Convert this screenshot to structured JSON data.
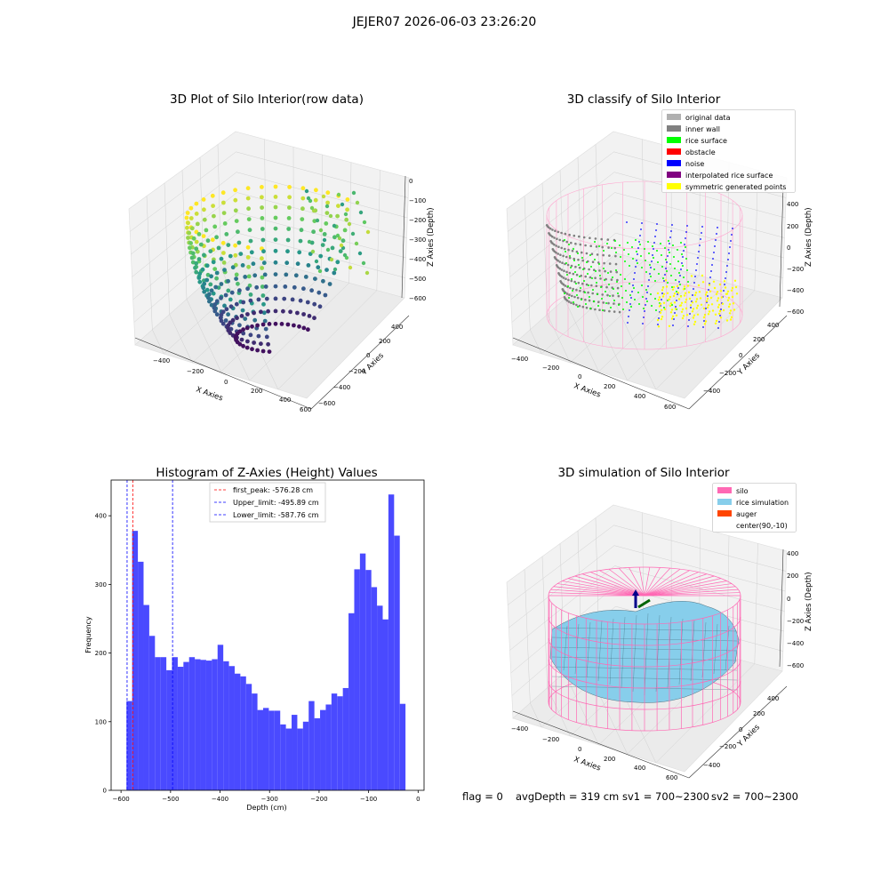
{
  "figure_title": "JEJER07 2026-06-03 23:26:20",
  "colors": {
    "hist_bar": "#4a4aff",
    "first_peak_line": "#ff0000",
    "limit_line": "#0000ff",
    "silo": "#ff69b4",
    "rice_simulation": "#87ceeb",
    "auger": "#ff4500",
    "original_data": "#b0b0b0",
    "inner_wall": "#808080",
    "rice_surface": "#00ff00",
    "obstacle": "#ff0000",
    "noise": "#0000ff",
    "interpolated_rice_surface": "#800080",
    "symmetric_generated_points": "#ffff00"
  },
  "chart_data": [
    {
      "type": "scatter",
      "projection": "3d",
      "title": "3D Plot of Silo Interior(row data)",
      "xlabel": "X Axies",
      "ylabel": "Y Axies",
      "zlabel": "Z Axies (Depth)",
      "x_ticks": [
        "−400",
        "−200",
        "0",
        "200",
        "400",
        "600"
      ],
      "y_ticks": [
        "−600",
        "−400",
        "−200",
        "0",
        "200",
        "400"
      ],
      "z_ticks": [
        "0",
        "−100",
        "−200",
        "−300",
        "−400",
        "−500",
        "−600"
      ],
      "colormap": "viridis",
      "grid": true
    },
    {
      "type": "scatter",
      "projection": "3d",
      "title": "3D classify of Silo Interior",
      "xlabel": "X Axies",
      "ylabel": "Y Axies",
      "zlabel": "Z Axies (Depth)",
      "x_ticks": [
        "−400",
        "−200",
        "0",
        "200",
        "400",
        "600"
      ],
      "y_ticks": [
        "−400",
        "−200",
        "0",
        "200",
        "400"
      ],
      "z_ticks": [
        "400",
        "200",
        "0",
        "−200",
        "−400",
        "−600"
      ],
      "legend_placement": "top-right",
      "legend": [
        {
          "label": "original data",
          "color": "#b0b0b0"
        },
        {
          "label": "inner wall",
          "color": "#808080"
        },
        {
          "label": "rice surface",
          "color": "#00ff00"
        },
        {
          "label": "obstacle",
          "color": "#ff0000"
        },
        {
          "label": "noise",
          "color": "#0000ff"
        },
        {
          "label": "interpolated rice surface",
          "color": "#800080"
        },
        {
          "label": "symmetric generated points",
          "color": "#ffff00"
        }
      ],
      "grid": true
    },
    {
      "type": "bar",
      "title": "Histogram of Z-Axies (Height) Values",
      "xlabel": "Depth (cm)",
      "ylabel": "Frequency",
      "xlim": [
        -620,
        12
      ],
      "ylim": [
        0,
        452
      ],
      "x_ticks": [
        -600,
        -500,
        -400,
        -300,
        -200,
        -100,
        0
      ],
      "x_tick_labels": [
        "−600",
        "−500",
        "−400",
        "−300",
        "−200",
        "−100",
        "0"
      ],
      "y_ticks": [
        0,
        100,
        200,
        300,
        400
      ],
      "y_tick_labels": [
        "0",
        "100",
        "200",
        "300",
        "400"
      ],
      "bin_start": -589,
      "bin_width": 11.5,
      "values": [
        130,
        378,
        333,
        270,
        225,
        194,
        194,
        175,
        194,
        180,
        187,
        194,
        191,
        190,
        189,
        191,
        212,
        188,
        181,
        170,
        166,
        155,
        141,
        117,
        120,
        116,
        116,
        96,
        90,
        110,
        90,
        100,
        130,
        105,
        117,
        125,
        141,
        137,
        149,
        258,
        322,
        345,
        321,
        296,
        269,
        249,
        431,
        371,
        126
      ],
      "vlines": [
        {
          "x": -576.28,
          "label": "first_peak: -576.28 cm",
          "color": "#ff0000"
        },
        {
          "x": -495.89,
          "label": "Upper_limit: -495.89 cm",
          "color": "#0000ff"
        },
        {
          "x": -587.76,
          "label": "Lower_limit: -587.76 cm",
          "color": "#0000ff"
        }
      ],
      "legend_placement": "top-center",
      "grid": false
    },
    {
      "type": "surface",
      "projection": "3d",
      "title": "3D simulation of Silo Interior",
      "xlabel": "X Axies",
      "ylabel": "Y Axies",
      "zlabel": "Z Axies (Depth)",
      "x_ticks": [
        "−400",
        "−200",
        "0",
        "200",
        "400",
        "600"
      ],
      "y_ticks": [
        "−400",
        "−200",
        "0",
        "200",
        "400"
      ],
      "z_ticks": [
        "400",
        "200",
        "0",
        "−200",
        "−400",
        "−600"
      ],
      "legend_placement": "top-right",
      "legend": [
        {
          "label": "silo",
          "color": "#ff69b4"
        },
        {
          "label": "rice simulation",
          "color": "#87ceeb"
        },
        {
          "label": "auger",
          "color": "#ff4500"
        },
        {
          "label": "center(90,-10)",
          "color": ""
        }
      ],
      "grid": true
    }
  ],
  "status_bar": {
    "flag": "flag = 0",
    "avg_depth": "avgDepth = 319 cm",
    "sv1": "sv1 = 700~2300",
    "sv2": "sv2 = 700~2300"
  }
}
